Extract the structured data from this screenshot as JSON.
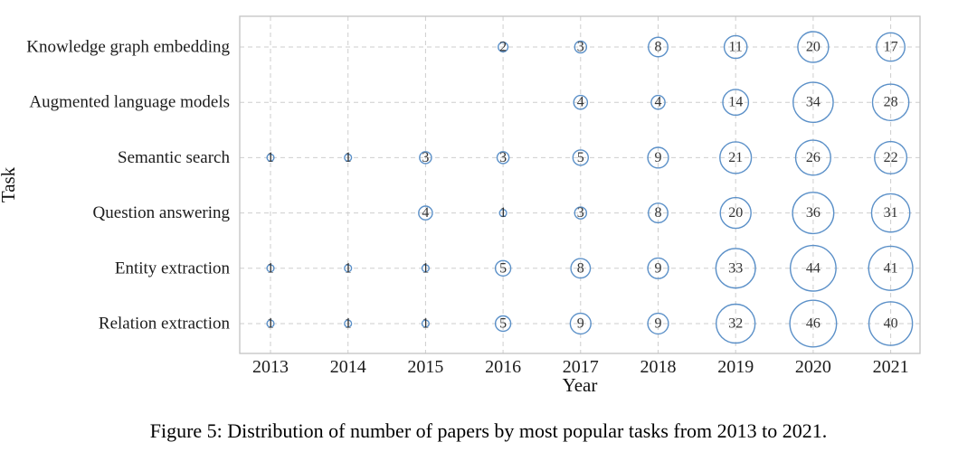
{
  "caption": "Figure 5: Distribution of number of papers by most popular tasks from 2013 to 2021.",
  "chart_data": {
    "type": "scatter",
    "variant": "bubble",
    "title": "",
    "xlabel": "Year",
    "ylabel": "Task",
    "x": [
      "2013",
      "2014",
      "2015",
      "2016",
      "2017",
      "2018",
      "2019",
      "2020",
      "2021"
    ],
    "categories": [
      "Knowledge graph embedding",
      "Augmented language models",
      "Semantic search",
      "Question answering",
      "Entity extraction",
      "Relation extraction"
    ],
    "series": [
      {
        "name": "Knowledge graph embedding",
        "values": [
          null,
          null,
          null,
          2,
          3,
          8,
          11,
          20,
          17
        ]
      },
      {
        "name": "Augmented language models",
        "values": [
          null,
          null,
          null,
          null,
          4,
          4,
          14,
          34,
          28
        ]
      },
      {
        "name": "Semantic search",
        "values": [
          1,
          1,
          3,
          3,
          5,
          9,
          21,
          26,
          22
        ]
      },
      {
        "name": "Question answering",
        "values": [
          null,
          null,
          4,
          1,
          3,
          8,
          20,
          36,
          31
        ]
      },
      {
        "name": "Entity extraction",
        "values": [
          1,
          1,
          1,
          5,
          8,
          9,
          33,
          44,
          41
        ]
      },
      {
        "name": "Relation extraction",
        "values": [
          1,
          1,
          1,
          5,
          9,
          9,
          32,
          46,
          40
        ]
      }
    ],
    "grid": true,
    "legend": "none",
    "bubble_stroke_color": "#5b90c8",
    "grid_color": "#cecece",
    "value_labels": "inside bubbles",
    "size_encoding": "radius proportional to sqrt(value)"
  }
}
